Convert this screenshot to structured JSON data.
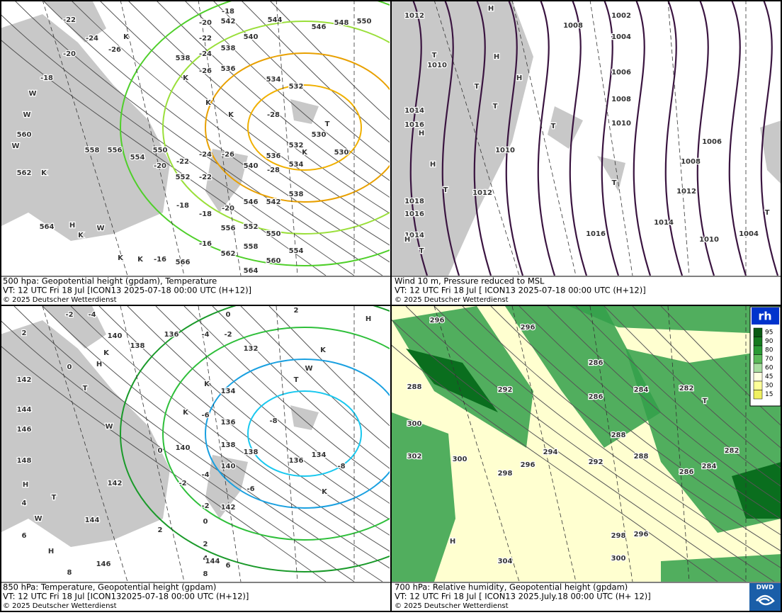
{
  "panels": [
    {
      "caption": [
        "500 hpa: Geopotential height (gpdam), Temperature",
        "VT: 12 UTC Fri  18 Jul [ICON13 2025-07-18 00:00 UTC  (H+12)]",
        "© 2025 Deutscher Wetterdienst"
      ],
      "labels": [
        "544",
        "546",
        "548",
        "550",
        "542",
        "540",
        "538",
        "538",
        "536",
        "534",
        "532",
        "530",
        "532",
        "530",
        "534",
        "536",
        "538",
        "540",
        "542",
        "546",
        "550",
        "552",
        "554",
        "556",
        "558",
        "560",
        "562",
        "564",
        "566",
        "564",
        "562",
        "560",
        "558",
        "556",
        "554",
        "550",
        "552",
        "-22",
        "-20",
        "-18",
        "-24",
        "-26",
        "-20",
        "-18",
        "-22",
        "-24",
        "-26",
        "-28",
        "-28",
        "-26",
        "-24",
        "-22",
        "-22",
        "-20",
        "-18",
        "-18",
        "-20",
        "-16",
        "-16",
        "K",
        "K",
        "K",
        "K",
        "K",
        "T",
        "W",
        "W",
        "W",
        "K",
        "H",
        "K",
        "W",
        "K",
        "K"
      ]
    },
    {
      "caption": [
        "Wind 10 m, Pressure reduced to MSL",
        "VT: 12 UTC Fri  18 Jul [ ICON13 2025-07-18 00:00 UTC (H+12)]",
        "© 2025 Deutscher Wetterdienst"
      ],
      "labels": [
        "1002",
        "1004",
        "1006",
        "1008",
        "1008",
        "1010",
        "1006",
        "1008",
        "1012",
        "1010",
        "1014",
        "1016",
        "1010",
        "1012",
        "1018",
        "1016",
        "1014",
        "1016",
        "1014",
        "1012",
        "1010",
        "1004",
        "H",
        "H",
        "T",
        "T",
        "H",
        "T",
        "T",
        "H",
        "H",
        "T",
        "T",
        "T",
        "H",
        "T"
      ]
    },
    {
      "caption": [
        "850 hPa:  Temperature, Geopotential height (gpdam)",
        "VT: 12 UTC Fri  18 Jul [ICON132025-07-18 00:00 UTC  (H+12)]",
        "© 2025 Deutscher Wetterdienst"
      ],
      "labels": [
        "-2",
        "-4",
        "0",
        "2",
        "2",
        "-4",
        "-2",
        "140",
        "138",
        "136",
        "132",
        "142",
        "144",
        "146",
        "148",
        "0",
        "134",
        "136",
        "-6",
        "-8",
        "138",
        "140",
        "136",
        "134",
        "-8",
        "138",
        "140",
        "-4",
        "-6",
        "142",
        "0",
        "-2",
        "-2",
        "142",
        "0",
        "2",
        "144",
        "4",
        "6",
        "146",
        "2",
        "4",
        "144",
        "6",
        "8",
        "8",
        "K",
        "H",
        "T",
        "W",
        "K",
        "T",
        "K",
        "K",
        "H",
        "T",
        "H",
        "W",
        "K",
        "W",
        "H"
      ]
    },
    {
      "caption": [
        "700 hPa:  Relative humidity, Geopotential height (gpdam)",
        "VT: 12 UTC Fri  18 Jul [ ICON13  2025.July.18 00:00 UTC (H+ 12)]",
        "© 2025 Deutscher Wetterdienst"
      ],
      "labels": [
        "296",
        "296",
        "288",
        "292",
        "286",
        "286",
        "284",
        "282",
        "300",
        "302",
        "300",
        "294",
        "296",
        "298",
        "288",
        "292",
        "288",
        "286",
        "284",
        "282",
        "296",
        "298",
        "300",
        "304",
        "H",
        "T"
      ]
    }
  ],
  "legend": {
    "title": "rh",
    "levels": [
      "95",
      "90",
      "80",
      "70",
      "60",
      "45",
      "30",
      "15"
    ]
  },
  "logo": "DWD"
}
